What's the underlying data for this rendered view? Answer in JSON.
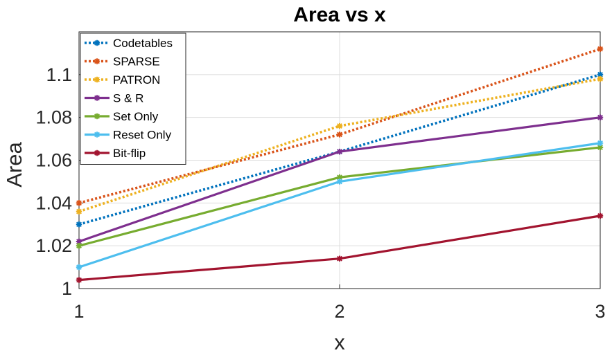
{
  "chart_data": {
    "type": "line",
    "title": "Area vs x",
    "xlabel": "x",
    "ylabel": "Area",
    "x": [
      1,
      2,
      3
    ],
    "xlim": [
      1,
      3
    ],
    "ylim": [
      1,
      1.12
    ],
    "xticks": [
      "1",
      "2",
      "3"
    ],
    "yticks": [
      "1",
      "1.02",
      "1.04",
      "1.06",
      "1.08",
      "1.1"
    ],
    "ytick_values": [
      1,
      1.02,
      1.04,
      1.06,
      1.08,
      1.1
    ],
    "grid": true,
    "legend_position": "top-left",
    "series": [
      {
        "name": "Codetables",
        "values": [
          1.03,
          1.064,
          1.1
        ],
        "color": "#0072BD",
        "style": "dotted"
      },
      {
        "name": "SPARSE",
        "values": [
          1.04,
          1.072,
          1.112
        ],
        "color": "#D95319",
        "style": "dotted"
      },
      {
        "name": "PATRON",
        "values": [
          1.036,
          1.076,
          1.098
        ],
        "color": "#EDB120",
        "style": "dotted"
      },
      {
        "name": "S & R",
        "values": [
          1.022,
          1.064,
          1.08
        ],
        "color": "#7E2F8E",
        "style": "solid"
      },
      {
        "name": "Set Only",
        "values": [
          1.02,
          1.052,
          1.066
        ],
        "color": "#77AC30",
        "style": "solid"
      },
      {
        "name": "Reset Only",
        "values": [
          1.01,
          1.05,
          1.068
        ],
        "color": "#4DBEEE",
        "style": "solid"
      },
      {
        "name": "Bit-flip",
        "values": [
          1.004,
          1.014,
          1.034
        ],
        "color": "#A2142F",
        "style": "solid"
      }
    ]
  }
}
